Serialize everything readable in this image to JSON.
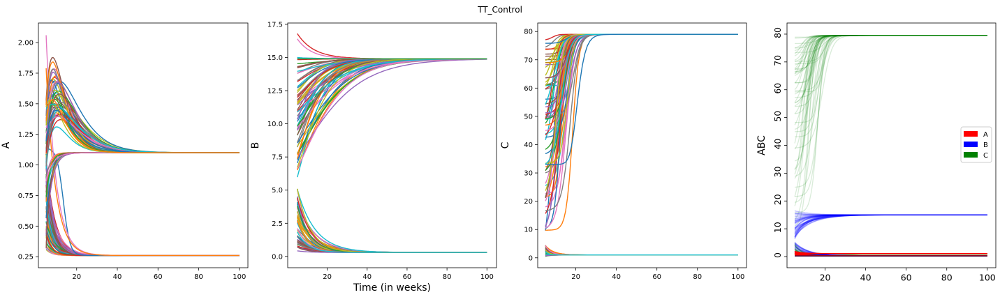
{
  "figure": {
    "suptitle": "TT_Control"
  },
  "chart_data": [
    {
      "type": "line",
      "title": "",
      "xlabel": "",
      "ylabel": "A",
      "xlim": [
        1.2,
        104.2
      ],
      "ylim": [
        0.16,
        2.16
      ],
      "xticks": [
        20,
        40,
        60,
        80,
        100
      ],
      "yticks": [
        0.25,
        0.5,
        0.75,
        1.0,
        1.25,
        1.5,
        1.75,
        2.0
      ],
      "ytick_labels": [
        "0.25",
        "0.50",
        "0.75",
        "1.00",
        "1.25",
        "1.50",
        "1.75",
        "2.00"
      ],
      "grid": false,
      "groups": [
        {
          "description": "curves peaking then settling",
          "count": 45,
          "start_range": [
            0.95,
            1.55
          ],
          "peak_range": [
            1.3,
            1.74
          ],
          "final": 1.1,
          "x_range": [
            5,
            100
          ]
        },
        {
          "description": "curves rising to steady state",
          "count": 12,
          "start_range": [
            0.3,
            1.1
          ],
          "final": 1.1,
          "x_range": [
            5,
            100
          ]
        },
        {
          "description": "curves decaying to low steady state",
          "count": 45,
          "start_range": [
            0.3,
            1.1
          ],
          "final": 0.26,
          "x_range": [
            5,
            100
          ]
        },
        {
          "description": "high start outliers",
          "starts": [
            2.06,
            1.79
          ],
          "final": 0.26,
          "x_range": [
            5,
            100
          ]
        }
      ]
    },
    {
      "type": "line",
      "title": "",
      "xlabel": "Time (in weeks)",
      "ylabel": "B",
      "xlim": [
        0.2,
        104.8
      ],
      "ylim": [
        -0.85,
        17.6
      ],
      "xticks": [
        20,
        40,
        60,
        80,
        100
      ],
      "yticks": [
        0,
        2.5,
        5,
        7.5,
        10,
        12.5,
        15,
        17.5
      ],
      "ytick_labels": [
        "0.0",
        "2.5",
        "5.0",
        "7.5",
        "10.0",
        "12.5",
        "15.0",
        "17.5"
      ],
      "grid": false,
      "groups": [
        {
          "description": "curves rising to upper steady state",
          "count": 60,
          "start_range": [
            5.9,
            15.0
          ],
          "final": 14.9,
          "x_range": [
            5,
            100
          ]
        },
        {
          "description": "curves falling to upper steady state",
          "count": 4,
          "starts": [
            16.8,
            16.4,
            15.0,
            14.9
          ],
          "final": 14.9,
          "x_range": [
            5,
            100
          ]
        },
        {
          "description": "curves decaying to lower steady state",
          "count": 50,
          "start_range": [
            0.4,
            5.4
          ],
          "final": 0.3,
          "x_range": [
            5,
            100
          ]
        }
      ]
    },
    {
      "type": "line",
      "title": "",
      "xlabel": "",
      "ylabel": "C",
      "xlim": [
        1.2,
        104.2
      ],
      "ylim": [
        -3.5,
        83
      ],
      "xticks": [
        20,
        40,
        60,
        80,
        100
      ],
      "yticks": [
        0,
        10,
        20,
        30,
        40,
        50,
        60,
        70,
        80
      ],
      "ytick_labels": [
        "0",
        "10",
        "20",
        "30",
        "40",
        "50",
        "60",
        "70",
        "80"
      ],
      "grid": false,
      "groups": [
        {
          "description": "curves rising to upper steady state",
          "count": 70,
          "start_range": [
            1,
            79
          ],
          "final": 79,
          "x_range": [
            5,
            100
          ]
        },
        {
          "description": "curves staying low",
          "count": 40,
          "start_range": [
            0.5,
            4.5
          ],
          "final": 1,
          "x_range": [
            5,
            100
          ]
        }
      ]
    },
    {
      "type": "line",
      "title": "",
      "xlabel": "",
      "ylabel": "ABC",
      "xlim": [
        1.2,
        104.2
      ],
      "ylim": [
        -4,
        84
      ],
      "xticks": [
        20,
        40,
        60,
        80,
        100
      ],
      "yticks": [
        0,
        10,
        20,
        30,
        40,
        50,
        60,
        70,
        80
      ],
      "ytick_labels": [
        "0",
        "10",
        "20",
        "30",
        "40",
        "50",
        "60",
        "70",
        "80"
      ],
      "grid": false,
      "legend": {
        "location": "center right",
        "entries": [
          {
            "label": "A",
            "color": "#ff0000"
          },
          {
            "label": "B",
            "color": "#0000ff"
          },
          {
            "label": "C",
            "color": "#008000"
          }
        ]
      },
      "series": [
        {
          "name": "A",
          "color": "#ff0000",
          "count": 60,
          "start_range": [
            0.3,
            2
          ],
          "final_values": [
            1.1,
            0.26
          ],
          "x_range": [
            5,
            100
          ],
          "alpha": 0.15
        },
        {
          "name": "B",
          "color": "#0000ff",
          "count": 60,
          "start_range": [
            6,
            17
          ],
          "final_values": [
            15,
            0.3
          ],
          "x_range": [
            5,
            100
          ],
          "alpha": 0.15
        },
        {
          "name": "C",
          "color": "#008000",
          "count": 60,
          "start_range": [
            2,
            79
          ],
          "final_values": [
            79.5,
            0.5
          ],
          "x_range": [
            5,
            100
          ],
          "alpha": 0.15
        }
      ]
    }
  ]
}
